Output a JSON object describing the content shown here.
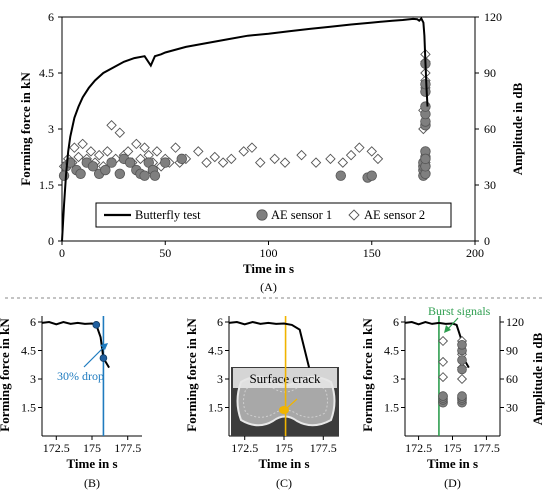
{
  "chart_data": [
    {
      "panel": "(A)",
      "type": "scatter",
      "xlabel": "Time in s",
      "ylabel": "Forming force in kN",
      "y2label": "Amplitude in dB",
      "xlim": [
        0,
        200
      ],
      "ylim": [
        0,
        6
      ],
      "y2lim": [
        0,
        120
      ],
      "xticks": [
        "0",
        "50",
        "100",
        "150",
        "200"
      ],
      "yticks": [
        "0",
        "1.5",
        "3",
        "4.5",
        "6"
      ],
      "y2ticks": [
        "0",
        "30",
        "60",
        "90",
        "120"
      ],
      "legend_position": "bottom",
      "series": [
        {
          "name": "Butterfly test",
          "kind": "line",
          "axis": "left",
          "x": [
            0,
            1,
            2,
            3,
            4,
            6,
            8,
            10,
            13,
            16,
            20,
            25,
            30,
            35,
            40,
            43,
            45,
            48,
            50,
            60,
            70,
            80,
            90,
            100,
            110,
            120,
            130,
            140,
            150,
            160,
            165,
            170,
            172,
            173,
            174,
            175,
            175.5,
            176,
            176.5,
            177
          ],
          "y": [
            0,
            1.0,
            1.8,
            2.4,
            2.8,
            3.3,
            3.6,
            3.85,
            4.1,
            4.3,
            4.5,
            4.65,
            4.8,
            4.9,
            4.95,
            4.7,
            4.95,
            5.0,
            5.05,
            5.2,
            5.3,
            5.4,
            5.5,
            5.55,
            5.62,
            5.68,
            5.74,
            5.8,
            5.85,
            5.9,
            5.92,
            5.95,
            5.94,
            5.9,
            5.96,
            5.85,
            5.5,
            4.8,
            4.1,
            3.6
          ]
        },
        {
          "name": "AE sensor 1",
          "kind": "scatter",
          "axis": "right",
          "marker": "circle",
          "x": [
            1,
            2,
            4,
            7,
            9,
            12,
            15,
            18,
            21,
            24,
            28,
            30,
            33,
            36,
            38,
            40,
            42,
            44,
            45,
            50,
            58,
            135,
            148,
            150,
            175,
            175,
            175,
            175,
            176,
            176,
            176,
            176,
            176,
            176,
            176,
            176,
            176,
            176,
            176,
            176
          ],
          "y": [
            35,
            40,
            42,
            38,
            36,
            42,
            40,
            36,
            38,
            42,
            36,
            44,
            42,
            38,
            36,
            35,
            42,
            38,
            35,
            42,
            44,
            35,
            34,
            35,
            35,
            38,
            40,
            42,
            45,
            48,
            62,
            64,
            68,
            72,
            80,
            84,
            95,
            36,
            40,
            44
          ]
        },
        {
          "name": "AE sensor 2",
          "kind": "scatter",
          "axis": "right",
          "marker": "diamond",
          "x": [
            1,
            3,
            5,
            6,
            8,
            10,
            12,
            14,
            16,
            18,
            20,
            22,
            24,
            26,
            28,
            30,
            32,
            34,
            36,
            38,
            40,
            42,
            44,
            46,
            48,
            50,
            52,
            55,
            57,
            60,
            66,
            70,
            74,
            78,
            82,
            88,
            92,
            96,
            103,
            108,
            116,
            123,
            130,
            136,
            140,
            144,
            150,
            153,
            175,
            175,
            176,
            176,
            176,
            176,
            176,
            176,
            176
          ],
          "y": [
            40,
            44,
            42,
            50,
            45,
            52,
            44,
            48,
            42,
            46,
            40,
            48,
            62,
            44,
            58,
            46,
            48,
            42,
            52,
            44,
            50,
            46,
            42,
            48,
            40,
            44,
            42,
            50,
            42,
            44,
            48,
            42,
            45,
            42,
            44,
            48,
            50,
            42,
            44,
            42,
            46,
            42,
            44,
            42,
            46,
            50,
            48,
            44,
            60,
            70,
            82,
            86,
            90,
            96,
            100,
            72,
            42
          ]
        }
      ]
    },
    {
      "panel": "(B)",
      "type": "line",
      "xlabel": "Time in s",
      "ylabel": "Forming force in kN",
      "xlim": [
        171.5,
        178.5
      ],
      "ylim": [
        0,
        6
      ],
      "xticks": [
        "172.5",
        "175",
        "177.5"
      ],
      "yticks": [
        "1.5",
        "3",
        "4.5",
        "6"
      ],
      "annotations": [
        {
          "text": "30% drop",
          "color": "#1f7bbf",
          "x": 175.8
        }
      ],
      "points": [
        {
          "x": 175.3,
          "y": 5.85
        },
        {
          "x": 175.8,
          "y": 4.1
        }
      ],
      "series": [
        {
          "x": [
            171.5,
            172,
            172.5,
            173,
            173.5,
            174,
            174.5,
            175,
            175.3,
            175.6,
            175.8,
            176.2
          ],
          "y": [
            5.95,
            6.0,
            5.88,
            6.0,
            5.9,
            5.95,
            5.9,
            5.92,
            5.85,
            5.2,
            4.1,
            3.6
          ]
        }
      ]
    },
    {
      "panel": "(C)",
      "type": "line",
      "xlabel": "Time in s",
      "ylabel": "Forming force in kN",
      "xlim": [
        171.5,
        178.5
      ],
      "ylim": [
        0,
        6
      ],
      "xticks": [
        "172.5",
        "175",
        "177.5"
      ],
      "yticks": [
        "1.5",
        "3",
        "4.5",
        "6"
      ],
      "annotations": [
        {
          "text": "Surface crack",
          "color": "#f0b400",
          "x": 175.1
        }
      ],
      "series": [
        {
          "x": [
            171.5,
            172,
            172.5,
            173,
            173.5,
            174,
            174.5,
            175,
            175.5,
            176,
            176.3,
            176.6
          ],
          "y": [
            5.95,
            6.0,
            5.88,
            6.0,
            5.9,
            5.95,
            5.9,
            5.92,
            5.85,
            5.6,
            4.6,
            3.6
          ]
        }
      ]
    },
    {
      "panel": "(D)",
      "type": "scatter",
      "xlabel": "Time in s",
      "ylabel": "Forming force in kN",
      "y2label": "Amplitude in dB",
      "xlim": [
        171.5,
        178.5
      ],
      "ylim": [
        0,
        6
      ],
      "y2lim": [
        0,
        120
      ],
      "xticks": [
        "172.5",
        "175",
        "177.5"
      ],
      "yticks": [
        "1.5",
        "3",
        "4.5",
        "6"
      ],
      "y2ticks": [
        "30",
        "60",
        "90",
        "120"
      ],
      "annotations": [
        {
          "text": "Burst signals",
          "color": "#2e9e4f",
          "x": 174.0
        }
      ],
      "series": [
        {
          "kind": "line",
          "x": [
            171.5,
            172,
            172.5,
            173,
            173.5,
            174,
            174.5,
            175,
            175.3,
            175.6,
            175.8,
            176.2
          ],
          "y": [
            5.95,
            6.0,
            5.88,
            6.0,
            5.9,
            5.95,
            5.9,
            5.92,
            5.85,
            5.2,
            4.1,
            3.6
          ]
        },
        {
          "kind": "scatter",
          "marker": "circle",
          "x": [
            174.3,
            174.3,
            174.3,
            174.3,
            175.7,
            175.7,
            175.7,
            175.7,
            175.7,
            175.7,
            175.7,
            175.7
          ],
          "y": [
            35,
            38,
            40,
            42,
            35,
            38,
            40,
            42,
            70,
            80,
            90,
            96
          ]
        },
        {
          "kind": "scatter",
          "marker": "diamond",
          "x": [
            174.3,
            174.3,
            174.3,
            174.3,
            174.3,
            175.7,
            175.7,
            175.7,
            175.7,
            175.7
          ],
          "y": [
            36,
            42,
            62,
            78,
            100,
            40,
            60,
            72,
            86,
            100
          ]
        }
      ]
    }
  ]
}
